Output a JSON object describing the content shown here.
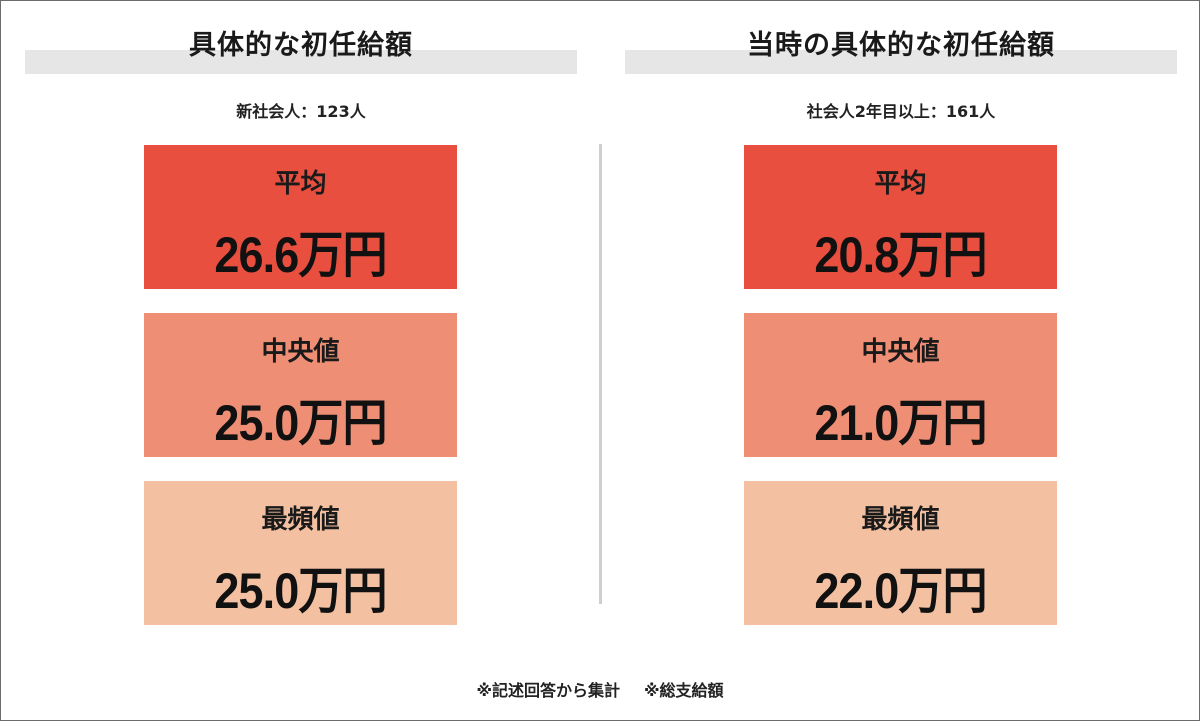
{
  "left": {
    "heading": "具体的な初任給額",
    "sample": "新社会人：123人",
    "cards": [
      {
        "label": "平均",
        "value": "26.6万円"
      },
      {
        "label": "中央値",
        "value": "25.0万円"
      },
      {
        "label": "最頻値",
        "value": "25.0万円"
      }
    ]
  },
  "right": {
    "heading": "当時の具体的な初任給額",
    "sample": "社会人2年目以上：161人",
    "cards": [
      {
        "label": "平均",
        "value": "20.8万円"
      },
      {
        "label": "中央値",
        "value": "21.0万円"
      },
      {
        "label": "最頻値",
        "value": "22.0万円"
      }
    ]
  },
  "footnotes": [
    "※記述回答から集計",
    "※総支給額"
  ],
  "colors": {
    "card_mean": "#e84f3f",
    "card_median": "#ee8e74",
    "card_mode": "#f4c0a2",
    "heading_bar": "#e6e6e6"
  }
}
